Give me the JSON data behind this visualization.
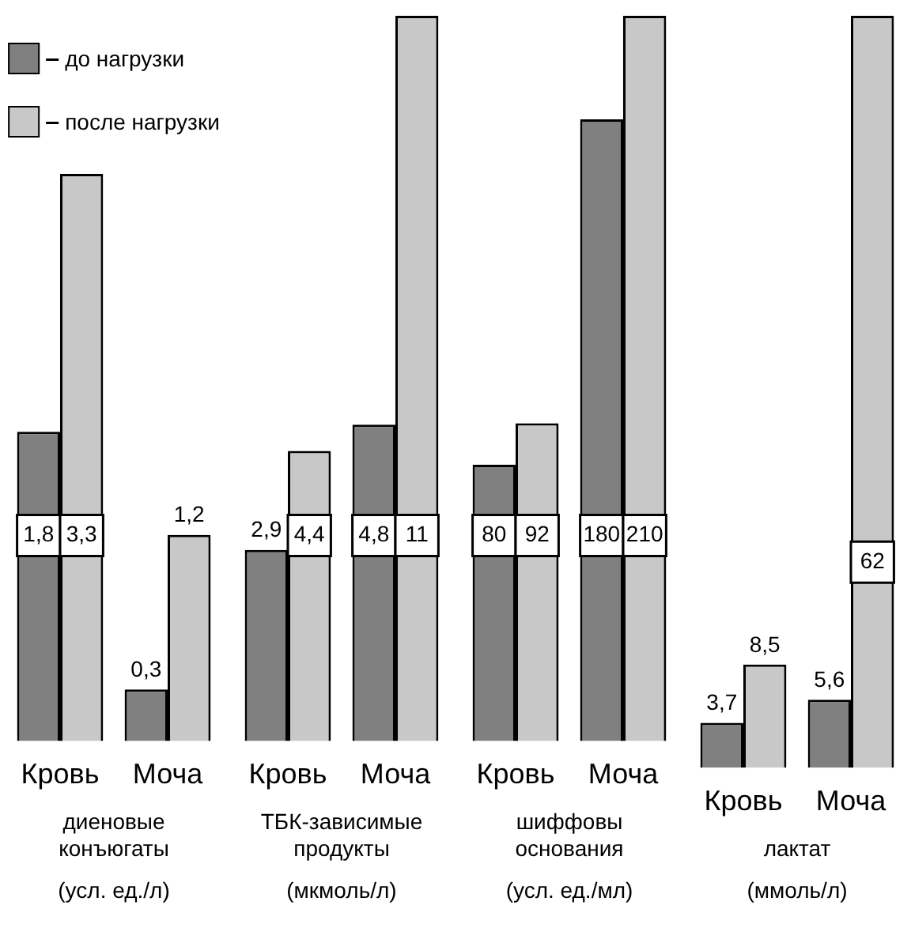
{
  "chart_data": [
    {
      "type": "bar",
      "categories": [
        "Кровь",
        "Моча"
      ],
      "xlabel": "диеновые\nконъюгаты",
      "annotations": [
        "(усл. ед./л)"
      ],
      "legend": "top",
      "series": [
        {
          "name": "до нагрузки",
          "color": "#808080",
          "values": [
            1.8,
            0.3
          ],
          "value_labels": [
            "1,8",
            "0,3"
          ]
        },
        {
          "name": "после нагрузки",
          "color": "#c8c8c8",
          "values": [
            3.3,
            1.2
          ],
          "value_labels": [
            "3,3",
            "1,2"
          ]
        }
      ]
    },
    {
      "type": "bar",
      "categories": [
        "Кровь",
        "Моча"
      ],
      "xlabel": "ТБК-зависимые\nпродукты",
      "annotations": [
        "(мкмоль/л)"
      ],
      "series": [
        {
          "color": "#808080",
          "values": [
            2.9,
            4.8
          ],
          "value_labels": [
            "2,9",
            "4,8"
          ]
        },
        {
          "color": "#c8c8c8",
          "values": [
            4.4,
            11
          ],
          "value_labels": [
            "4,4",
            "11"
          ]
        }
      ]
    },
    {
      "type": "bar",
      "categories": [
        "Кровь",
        "Моча"
      ],
      "xlabel": "шиффовы\nоснования",
      "annotations": [
        "(усл. ед./мл)"
      ],
      "series": [
        {
          "color": "#808080",
          "values": [
            80,
            180
          ],
          "value_labels": [
            "80",
            "180"
          ]
        },
        {
          "color": "#c8c8c8",
          "values": [
            92,
            210
          ],
          "value_labels": [
            "92",
            "210"
          ]
        }
      ]
    },
    {
      "type": "bar",
      "categories": [
        "Кровь",
        "Моча"
      ],
      "xlabel": "лактат",
      "annotations": [
        "(ммоль/л)"
      ],
      "series": [
        {
          "color": "#808080",
          "values": [
            3.7,
            5.6
          ],
          "value_labels": [
            "3,7",
            "5,6"
          ]
        },
        {
          "color": "#c8c8c8",
          "values": [
            8.5,
            62
          ],
          "value_labels": [
            "8,5",
            "62"
          ]
        }
      ]
    }
  ]
}
